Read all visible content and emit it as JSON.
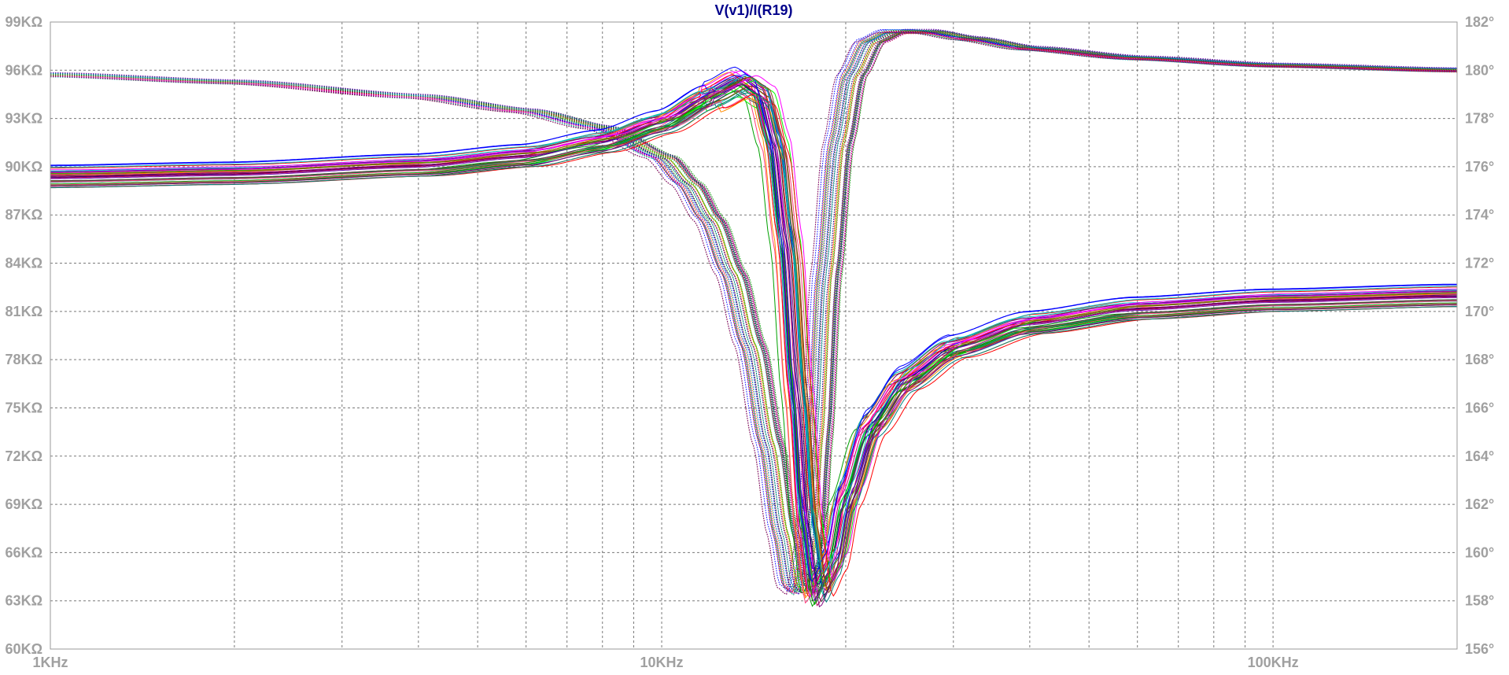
{
  "chart_data": {
    "type": "line",
    "title": "V(v1)/I(R19)",
    "x_scale": "log",
    "x_range_hz": [
      1000,
      200000
    ],
    "x_ticks": [
      {
        "value": 1000,
        "label": "1KHz"
      },
      {
        "value": 10000,
        "label": "10KHz"
      },
      {
        "value": 100000,
        "label": "100KHz"
      }
    ],
    "left_axis": {
      "quantity": "magnitude",
      "unit": "KΩ",
      "range": [
        60,
        99
      ],
      "ticks": [
        {
          "value": 99,
          "label": "99KΩ"
        },
        {
          "value": 96,
          "label": "96KΩ"
        },
        {
          "value": 93,
          "label": "93KΩ"
        },
        {
          "value": 90,
          "label": "90KΩ"
        },
        {
          "value": 87,
          "label": "87KΩ"
        },
        {
          "value": 84,
          "label": "84KΩ"
        },
        {
          "value": 81,
          "label": "81KΩ"
        },
        {
          "value": 78,
          "label": "78KΩ"
        },
        {
          "value": 75,
          "label": "75KΩ"
        },
        {
          "value": 72,
          "label": "72KΩ"
        },
        {
          "value": 69,
          "label": "69KΩ"
        },
        {
          "value": 66,
          "label": "66KΩ"
        },
        {
          "value": 63,
          "label": "63KΩ"
        },
        {
          "value": 60,
          "label": "60KΩ"
        }
      ]
    },
    "right_axis": {
      "quantity": "phase",
      "unit": "°",
      "range": [
        156,
        182
      ],
      "ticks": [
        {
          "value": 182,
          "label": "182°"
        },
        {
          "value": 180,
          "label": "180°"
        },
        {
          "value": 178,
          "label": "178°"
        },
        {
          "value": 176,
          "label": "176°"
        },
        {
          "value": 174,
          "label": "174°"
        },
        {
          "value": 172,
          "label": "172°"
        },
        {
          "value": 170,
          "label": "170°"
        },
        {
          "value": 168,
          "label": "168°"
        },
        {
          "value": 166,
          "label": "166°"
        },
        {
          "value": 164,
          "label": "164°"
        },
        {
          "value": 162,
          "label": "162°"
        },
        {
          "value": 160,
          "label": "160°"
        },
        {
          "value": 158,
          "label": "158°"
        },
        {
          "value": 156,
          "label": "156°"
        }
      ]
    },
    "grid": true,
    "legend": "none",
    "monte_carlo_runs": 40,
    "nominal_magnitude": {
      "axis": "left",
      "x": [
        1000,
        2000,
        4000,
        6000,
        8000,
        10000,
        12000,
        13500,
        14500,
        15300,
        16000,
        16700,
        17300,
        18000,
        19000,
        20000,
        22000,
        25000,
        30000,
        40000,
        60000,
        100000,
        200000
      ],
      "y": [
        89.4,
        89.6,
        90.1,
        90.7,
        91.6,
        92.8,
        94.4,
        95.3,
        94.6,
        91.5,
        85.5,
        76.0,
        68.0,
        63.8,
        65.5,
        69.5,
        74.0,
        76.8,
        78.8,
        80.3,
        81.2,
        81.7,
        82.0
      ]
    },
    "nominal_phase": {
      "axis": "right",
      "x": [
        1000,
        2000,
        4000,
        6000,
        8000,
        10000,
        11000,
        12000,
        13000,
        14000,
        15000,
        15800,
        16400,
        17000,
        17500,
        18000,
        18600,
        19500,
        20500,
        22000,
        24000,
        27000,
        32000,
        40000,
        60000,
        100000,
        200000
      ],
      "y": [
        179.8,
        179.5,
        178.9,
        178.3,
        177.6,
        176.4,
        175.3,
        173.8,
        171.6,
        168.6,
        164.5,
        160.8,
        158.6,
        158.3,
        160.2,
        164.8,
        171.5,
        177.0,
        179.8,
        181.2,
        181.6,
        181.6,
        181.3,
        180.9,
        180.5,
        180.2,
        180.0
      ]
    },
    "series_colors": [
      "#ff0000",
      "#00a000",
      "#0000ff",
      "#ff00ff",
      "#00c0c0",
      "#8b4513",
      "#800080",
      "#008080",
      "#ff8c00",
      "#000080",
      "#808000",
      "#c00060",
      "#404040",
      "#00ff00",
      "#ff4080",
      "#6a0dad"
    ]
  }
}
